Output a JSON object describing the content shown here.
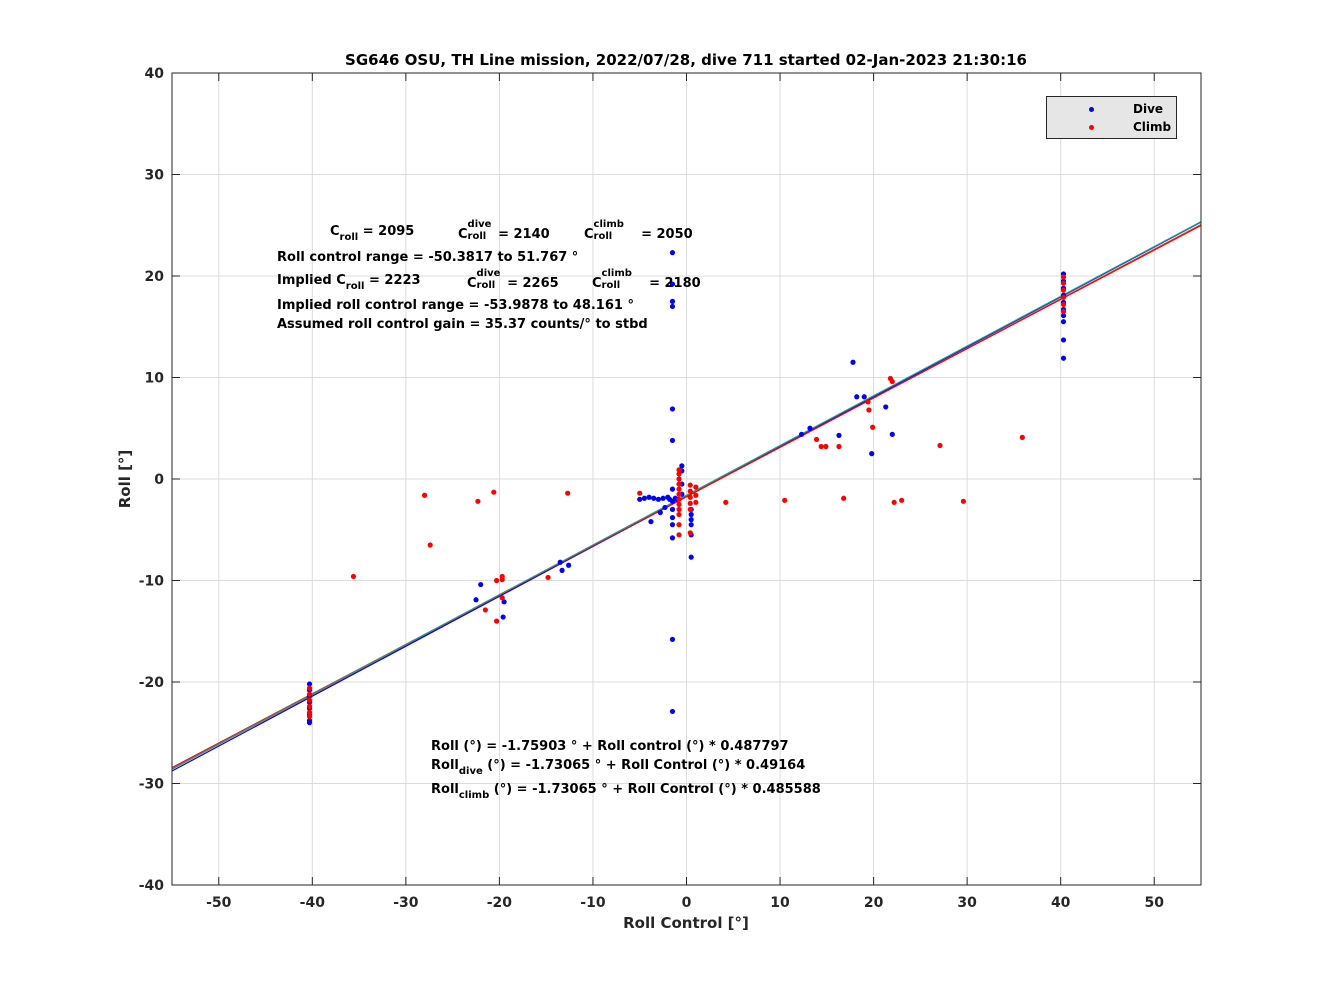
{
  "chart_data": {
    "type": "scatter",
    "title": "SG646 OSU, TH Line mission, 2022/07/28, dive 711 started 02-Jan-2023 21:30:16",
    "xlabel": "Roll Control [°]",
    "ylabel": "Roll [°]",
    "xlim": [
      -55,
      55
    ],
    "ylim": [
      -40,
      40
    ],
    "xticks": [
      -50,
      -40,
      -30,
      -20,
      -10,
      0,
      10,
      20,
      30,
      40,
      50
    ],
    "yticks": [
      -40,
      -30,
      -20,
      -10,
      0,
      10,
      20,
      30,
      40
    ],
    "grid": true,
    "legend_position": "top-right",
    "series": [
      {
        "name": "Dive",
        "color": "#0000ff",
        "points": [
          [
            -40.3,
            -20.2
          ],
          [
            -40.3,
            -20.8
          ],
          [
            -40.3,
            -21.4
          ],
          [
            -40.3,
            -22.0
          ],
          [
            -40.3,
            -22.6
          ],
          [
            -40.3,
            -23.2
          ],
          [
            -40.3,
            -23.8
          ],
          [
            -40.3,
            -24.0
          ],
          [
            -22.5,
            -11.9
          ],
          [
            -22.0,
            -10.4
          ],
          [
            -19.5,
            -12.1
          ],
          [
            -19.6,
            -13.6
          ],
          [
            -13.5,
            -8.2
          ],
          [
            -13.3,
            -9.0
          ],
          [
            -12.6,
            -8.5
          ],
          [
            -5.0,
            -2.0
          ],
          [
            -4.5,
            -1.9
          ],
          [
            -4.0,
            -1.8
          ],
          [
            -3.8,
            -4.2
          ],
          [
            -3.5,
            -1.9
          ],
          [
            -3.0,
            -2.0
          ],
          [
            -2.8,
            -3.3
          ],
          [
            -2.5,
            -1.9
          ],
          [
            -2.3,
            -2.8
          ],
          [
            -2.0,
            -1.8
          ],
          [
            -1.8,
            -2.0
          ],
          [
            -1.5,
            22.3
          ],
          [
            -1.5,
            19.2
          ],
          [
            -1.5,
            17.5
          ],
          [
            -1.5,
            17.0
          ],
          [
            -1.5,
            6.9
          ],
          [
            -1.5,
            3.8
          ],
          [
            -1.5,
            -1.0
          ],
          [
            -1.5,
            -2.2
          ],
          [
            -1.5,
            -3.0
          ],
          [
            -1.5,
            -3.8
          ],
          [
            -1.5,
            -4.5
          ],
          [
            -1.5,
            -5.8
          ],
          [
            -1.5,
            -15.8
          ],
          [
            -1.5,
            -22.9
          ],
          [
            -1.2,
            -1.9
          ],
          [
            -1.0,
            -2.0
          ],
          [
            -0.5,
            1.3
          ],
          [
            -0.5,
            0.8
          ],
          [
            -0.5,
            -0.5
          ],
          [
            -0.5,
            -1.5
          ],
          [
            0.5,
            -3.0
          ],
          [
            0.5,
            -3.5
          ],
          [
            0.5,
            -4.0
          ],
          [
            0.5,
            -4.5
          ],
          [
            0.5,
            -5.5
          ],
          [
            0.5,
            -7.7
          ],
          [
            12.3,
            4.4
          ],
          [
            13.2,
            5.0
          ],
          [
            16.3,
            4.3
          ],
          [
            17.8,
            11.5
          ],
          [
            18.2,
            8.1
          ],
          [
            19.0,
            8.1
          ],
          [
            19.8,
            2.5
          ],
          [
            21.3,
            7.1
          ],
          [
            22.0,
            4.4
          ],
          [
            40.3,
            20.2
          ],
          [
            40.3,
            19.5
          ],
          [
            40.3,
            18.8
          ],
          [
            40.3,
            18.1
          ],
          [
            40.3,
            17.4
          ],
          [
            40.3,
            16.7
          ],
          [
            40.3,
            16.1
          ],
          [
            40.3,
            15.5
          ],
          [
            40.3,
            13.7
          ],
          [
            40.3,
            11.9
          ]
        ]
      },
      {
        "name": "Climb",
        "color": "#ff0000",
        "points": [
          [
            -40.3,
            -20.6
          ],
          [
            -40.3,
            -21.2
          ],
          [
            -40.3,
            -21.8
          ],
          [
            -40.3,
            -22.4
          ],
          [
            -40.3,
            -23.0
          ],
          [
            -40.3,
            -23.4
          ],
          [
            -35.6,
            -9.6
          ],
          [
            -28.0,
            -1.6
          ],
          [
            -27.4,
            -6.5
          ],
          [
            -22.3,
            -2.2
          ],
          [
            -21.5,
            -12.9
          ],
          [
            -20.6,
            -1.3
          ],
          [
            -20.3,
            -10.0
          ],
          [
            -20.3,
            -14.0
          ],
          [
            -19.7,
            -9.6
          ],
          [
            -19.7,
            -9.9
          ],
          [
            -19.7,
            -11.7
          ],
          [
            -14.8,
            -9.7
          ],
          [
            -12.7,
            -1.4
          ],
          [
            -5.0,
            -1.4
          ],
          [
            -0.8,
            0.9
          ],
          [
            -0.8,
            0.5
          ],
          [
            -0.8,
            0.0
          ],
          [
            -0.8,
            -0.5
          ],
          [
            -0.8,
            -1.0
          ],
          [
            -0.8,
            -1.5
          ],
          [
            -0.8,
            -2.0
          ],
          [
            -0.8,
            -2.5
          ],
          [
            -0.8,
            -3.0
          ],
          [
            -0.8,
            -3.5
          ],
          [
            -0.8,
            -4.5
          ],
          [
            -0.8,
            -5.5
          ],
          [
            0.4,
            -0.6
          ],
          [
            0.4,
            -1.2
          ],
          [
            0.4,
            -1.8
          ],
          [
            0.4,
            -2.4
          ],
          [
            0.4,
            -3.0
          ],
          [
            0.4,
            -5.3
          ],
          [
            1.0,
            -0.8
          ],
          [
            1.0,
            -1.6
          ],
          [
            1.0,
            -2.3
          ],
          [
            4.2,
            -2.3
          ],
          [
            10.5,
            -2.1
          ],
          [
            13.9,
            3.9
          ],
          [
            14.4,
            3.2
          ],
          [
            14.9,
            3.2
          ],
          [
            16.3,
            3.2
          ],
          [
            16.8,
            -1.9
          ],
          [
            19.4,
            7.6
          ],
          [
            19.5,
            6.8
          ],
          [
            19.9,
            5.1
          ],
          [
            21.8,
            9.9
          ],
          [
            22.0,
            9.6
          ],
          [
            22.2,
            -2.3
          ],
          [
            23.0,
            -2.1
          ],
          [
            27.1,
            3.3
          ],
          [
            29.6,
            -2.2
          ],
          [
            35.9,
            4.1
          ],
          [
            40.3,
            19.9
          ],
          [
            40.3,
            19.3
          ],
          [
            40.3,
            18.6
          ],
          [
            40.3,
            17.9
          ],
          [
            40.3,
            17.2
          ],
          [
            40.3,
            16.5
          ]
        ]
      }
    ],
    "fit_lines": [
      {
        "name": "Roll",
        "color": "#d95319",
        "intercept": -1.75903,
        "slope": 0.487797
      },
      {
        "name": "Roll dive",
        "color": "#0000ff",
        "intercept": -1.73065,
        "slope": 0.49164
      },
      {
        "name": "Roll climb",
        "color": "#ff0000",
        "intercept": -1.73065,
        "slope": 0.485588
      },
      {
        "name": "",
        "color": "#1f9c8c",
        "intercept": -1.6,
        "slope": 0.49
      }
    ]
  },
  "annotations": {
    "c_roll": {
      "sym": "C",
      "sub": "roll",
      "value": " = 2095"
    },
    "c_roll_dive": {
      "sym": "C",
      "sup": "dive",
      "sub": "roll",
      "value": " = 2140"
    },
    "c_roll_climb": {
      "sym": "C",
      "sup": "climb",
      "sub": "roll",
      "value": " = 2050"
    },
    "roll_control_range": "Roll control range = -50.3817 to 51.767  °",
    "implied_prefix": "Implied ",
    "implied_c_roll": {
      "sym": "C",
      "sub": "roll",
      "value": " = 2223"
    },
    "implied_c_roll_dive": {
      "sym": "C",
      "sup": "dive",
      "sub": "roll",
      "value": " = 2265"
    },
    "implied_c_roll_climb": {
      "sym": "C",
      "sup": "climb",
      "sub": "roll",
      "value": " = 2180"
    },
    "implied_range": "Implied roll control range = -53.9878 to 48.161  °",
    "gain": "Assumed roll control gain = 35.37 counts/° to stbd",
    "fit_roll": "Roll (°) = -1.75903 ° + Roll control (°) * 0.487797",
    "fit_dive": {
      "sym": "Roll",
      "sub": "dive",
      "value": " (°) = -1.73065 ° + Roll Control (°) * 0.49164"
    },
    "fit_climb": {
      "sym": "Roll",
      "sub": "climb",
      "value": " (°) = -1.73065 ° + Roll Control (°) * 0.485588"
    }
  },
  "legend": {
    "items": [
      {
        "label": "Dive",
        "color": "#0000ff"
      },
      {
        "label": "Climb",
        "color": "#ff0000"
      }
    ]
  }
}
